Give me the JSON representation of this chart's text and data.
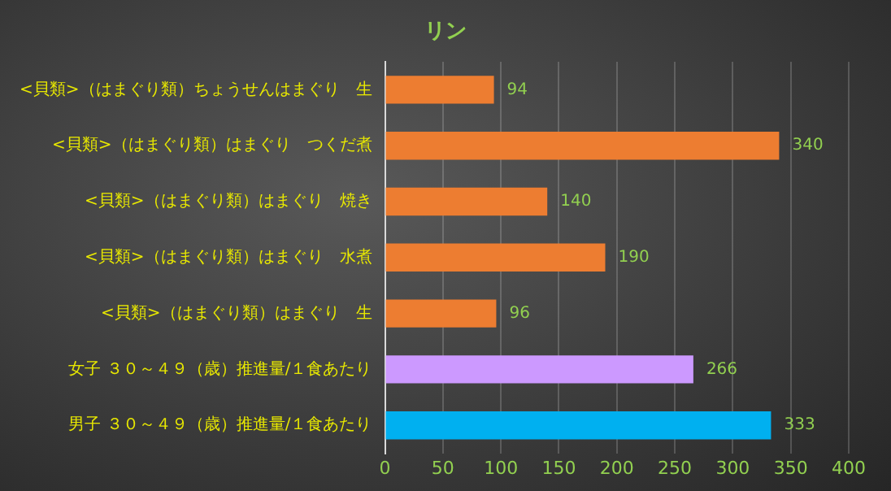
{
  "chart_data": {
    "type": "bar",
    "orientation": "horizontal",
    "title": "リン",
    "categories": [
      "<貝類>（はまぐり類）ちょうせんはまぐり　生",
      "<貝類>（はまぐり類）はまぐり　つくだ煮",
      "<貝類>（はまぐり類）はまぐり　焼き",
      "<貝類>（はまぐり類）はまぐり　水煮",
      "<貝類>（はまぐり類）はまぐり　生",
      "女子 ３０～４９（歳）推進量/１食あたり",
      "男子 ３０～４９（歳）推進量/１食あたり"
    ],
    "values": [
      94,
      340,
      140,
      190,
      96,
      266,
      333
    ],
    "colors": [
      "#ed7d31",
      "#ed7d31",
      "#ed7d31",
      "#ed7d31",
      "#ed7d31",
      "#cc99ff",
      "#00b0f0"
    ],
    "xlim": [
      0,
      400
    ],
    "xticks": [
      0,
      50,
      100,
      150,
      200,
      250,
      300,
      350,
      400
    ],
    "grid": "x",
    "data_labels": true,
    "legend": false
  }
}
